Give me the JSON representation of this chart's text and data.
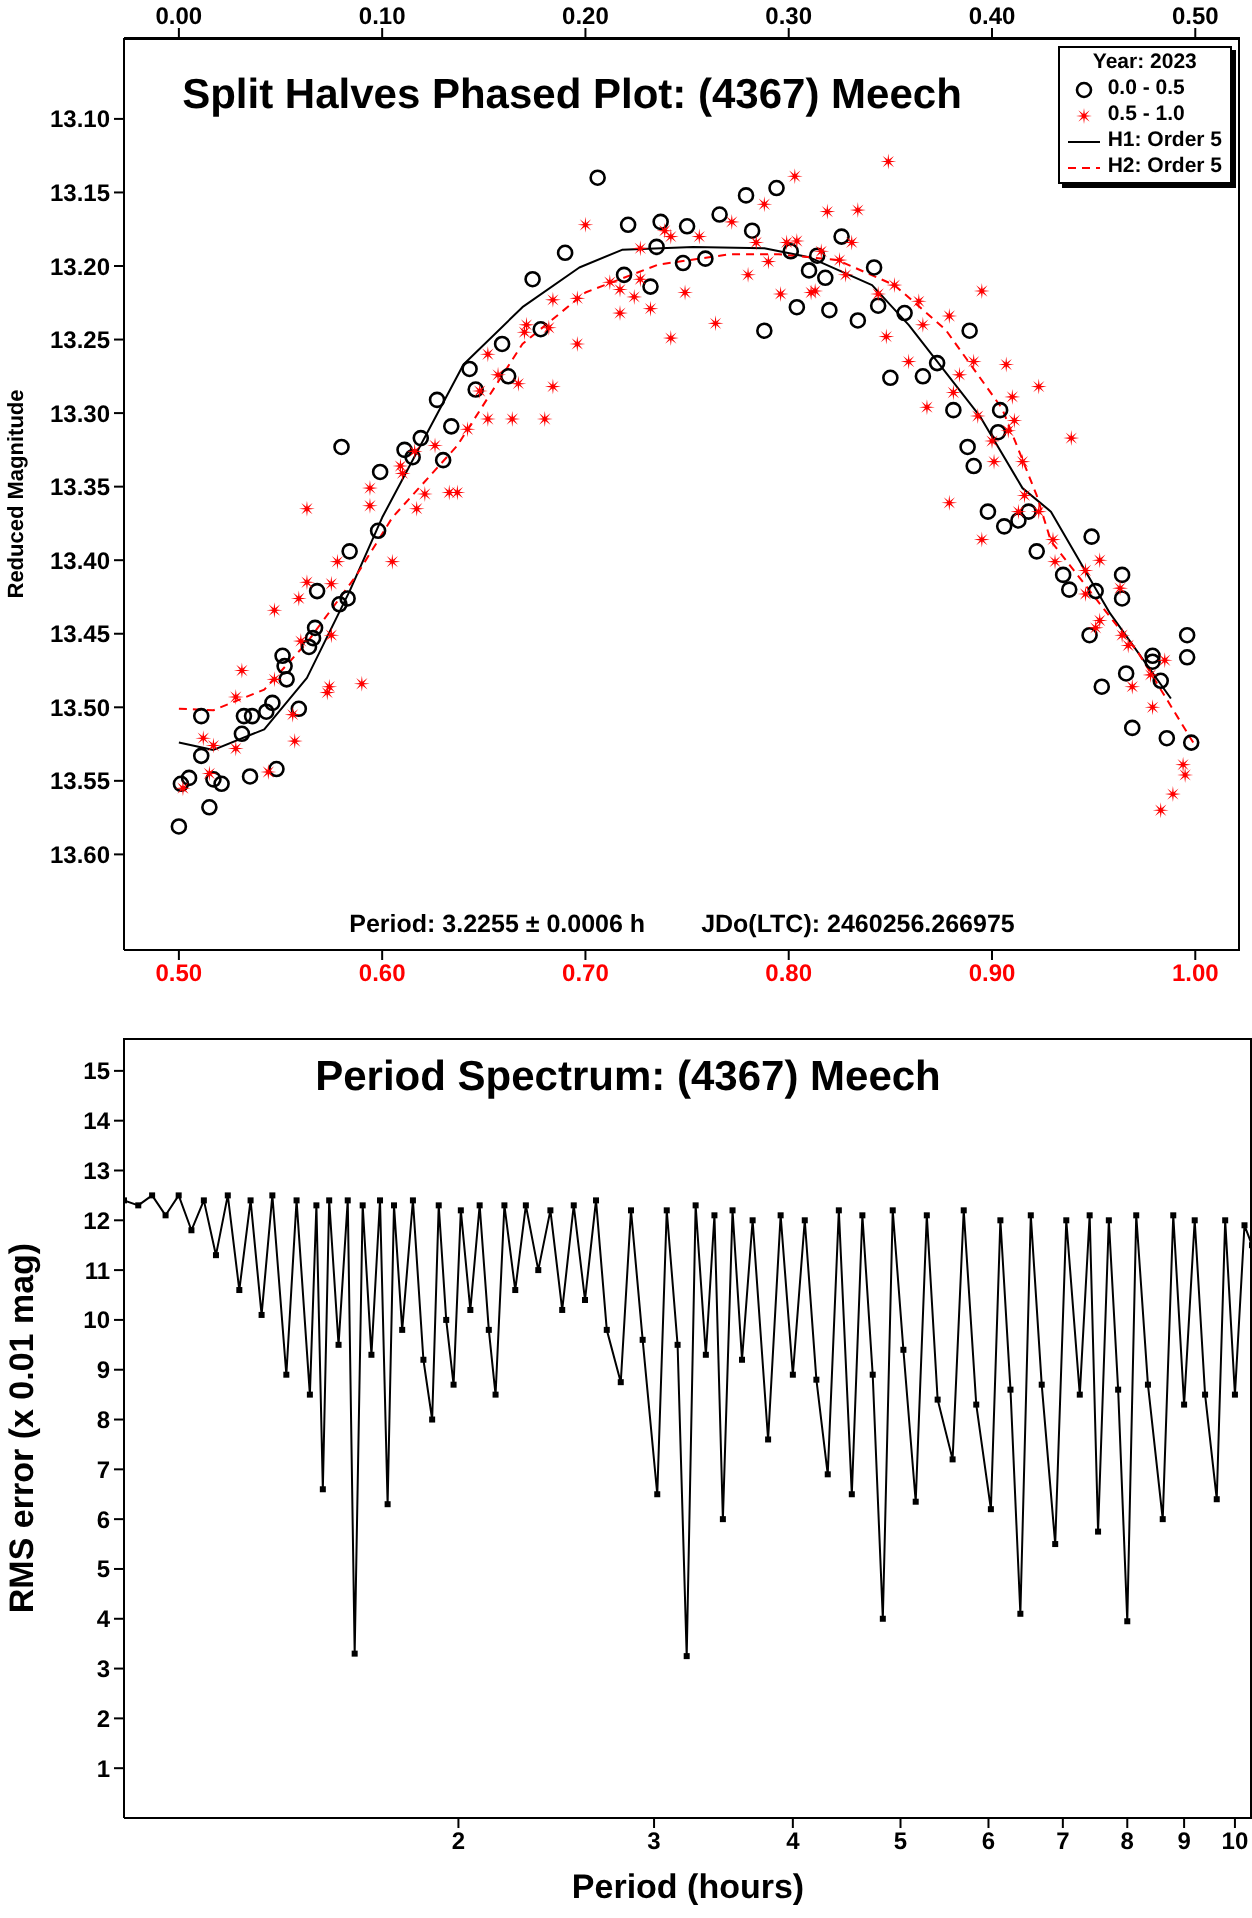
{
  "chart_data": [
    {
      "type": "scatter",
      "title": "Split Halves Phased Plot: (4367) Meech",
      "ylabel": "Reduced Magnitude",
      "legend_title": "Year: 2023",
      "legend": "top right",
      "grid": false,
      "annotations": [
        "Period: 3.2255 ± 0.0006 h",
        "JDo(LTC): 2460256.266975"
      ],
      "xlim": [
        0.473,
        1.022
      ],
      "xticks": [
        {
          "value": 0.5,
          "label": "0.50"
        },
        {
          "value": 0.6,
          "label": "0.60"
        },
        {
          "value": 0.7,
          "label": "0.70"
        },
        {
          "value": 0.8,
          "label": "0.80"
        },
        {
          "value": 0.9,
          "label": "0.90"
        },
        {
          "value": 1.0,
          "label": "1.00"
        }
      ],
      "x2lim": [
        -0.027,
        0.522
      ],
      "x2ticks": [
        {
          "value": 0,
          "label": "0.00"
        },
        {
          "value": 0.1,
          "label": "0.10"
        },
        {
          "value": 0.2,
          "label": "0.20"
        },
        {
          "value": 0.3,
          "label": "0.30"
        },
        {
          "value": 0.4,
          "label": "0.40"
        },
        {
          "value": 0.5,
          "label": "0.50"
        }
      ],
      "ylim": [
        13.665,
        13.045
      ],
      "yticks": [
        {
          "value": 13.1,
          "label": "13.10"
        },
        {
          "value": 13.15,
          "label": "13.15"
        },
        {
          "value": 13.2,
          "label": "13.20"
        },
        {
          "value": 13.25,
          "label": "13.25"
        },
        {
          "value": 13.3,
          "label": "13.30"
        },
        {
          "value": 13.35,
          "label": "13.35"
        },
        {
          "value": 13.4,
          "label": "13.40"
        },
        {
          "value": 13.45,
          "label": "13.45"
        },
        {
          "value": 13.5,
          "label": "13.50"
        },
        {
          "value": 13.55,
          "label": "13.55"
        },
        {
          "value": 13.6,
          "label": "13.60"
        }
      ],
      "series": [
        {
          "name": "0.0 - 0.5",
          "axis": "x2",
          "marker": "circle",
          "color": "#000000",
          "x": [
            0.0,
            0.001,
            0.005,
            0.011,
            0.011,
            0.015,
            0.017,
            0.021,
            0.031,
            0.032,
            0.035,
            0.036,
            0.043,
            0.046,
            0.048,
            0.051,
            0.052,
            0.053,
            0.059,
            0.064,
            0.066,
            0.067,
            0.068,
            0.079,
            0.08,
            0.083,
            0.084,
            0.098,
            0.099,
            0.111,
            0.115,
            0.119,
            0.127,
            0.13,
            0.134,
            0.143,
            0.146,
            0.159,
            0.162,
            0.174,
            0.178,
            0.19,
            0.206,
            0.219,
            0.221,
            0.232,
            0.235,
            0.237,
            0.248,
            0.25,
            0.259,
            0.266,
            0.279,
            0.282,
            0.288,
            0.294,
            0.301,
            0.304,
            0.31,
            0.314,
            0.318,
            0.32,
            0.326,
            0.334,
            0.342,
            0.344,
            0.35,
            0.357,
            0.366,
            0.373,
            0.381,
            0.388,
            0.389,
            0.391,
            0.398,
            0.403,
            0.404,
            0.406,
            0.413,
            0.418,
            0.422,
            0.435,
            0.438,
            0.448,
            0.449,
            0.451,
            0.454,
            0.464,
            0.464,
            0.466,
            0.469,
            0.479,
            0.479,
            0.483,
            0.486,
            0.496,
            0.496,
            0.498
          ],
          "values": [
            13.581,
            13.552,
            13.548,
            13.506,
            13.533,
            13.568,
            13.549,
            13.552,
            13.518,
            13.506,
            13.547,
            13.506,
            13.503,
            13.497,
            13.542,
            13.465,
            13.472,
            13.481,
            13.501,
            13.459,
            13.453,
            13.446,
            13.421,
            13.43,
            13.323,
            13.426,
            13.394,
            13.38,
            13.34,
            13.325,
            13.33,
            13.317,
            13.291,
            13.332,
            13.309,
            13.27,
            13.284,
            13.253,
            13.275,
            13.209,
            13.243,
            13.191,
            13.14,
            13.206,
            13.172,
            13.214,
            13.187,
            13.17,
            13.198,
            13.173,
            13.195,
            13.165,
            13.152,
            13.176,
            13.244,
            13.147,
            13.19,
            13.228,
            13.203,
            13.193,
            13.208,
            13.23,
            13.18,
            13.237,
            13.201,
            13.227,
            13.276,
            13.232,
            13.275,
            13.266,
            13.298,
            13.323,
            13.244,
            13.336,
            13.367,
            13.313,
            13.298,
            13.377,
            13.373,
            13.367,
            13.394,
            13.41,
            13.42,
            13.451,
            13.384,
            13.421,
            13.486,
            13.41,
            13.426,
            13.477,
            13.514,
            13.465,
            13.469,
            13.482,
            13.521,
            13.451,
            13.466,
            13.524
          ]
        },
        {
          "name": "0.5 - 1.0",
          "marker": "cross",
          "color": "#ff0000",
          "x": [
            0.502,
            0.512,
            0.515,
            0.517,
            0.528,
            0.528,
            0.531,
            0.544,
            0.547,
            0.547,
            0.556,
            0.557,
            0.559,
            0.56,
            0.563,
            0.563,
            0.573,
            0.574,
            0.575,
            0.575,
            0.578,
            0.59,
            0.594,
            0.594,
            0.605,
            0.609,
            0.61,
            0.616,
            0.617,
            0.621,
            0.626,
            0.633,
            0.637,
            0.642,
            0.648,
            0.652,
            0.652,
            0.657,
            0.664,
            0.667,
            0.67,
            0.671,
            0.68,
            0.682,
            0.684,
            0.684,
            0.696,
            0.696,
            0.7,
            0.712,
            0.717,
            0.717,
            0.724,
            0.727,
            0.727,
            0.732,
            0.739,
            0.742,
            0.742,
            0.749,
            0.756,
            0.764,
            0.772,
            0.78,
            0.784,
            0.788,
            0.79,
            0.796,
            0.799,
            0.803,
            0.804,
            0.811,
            0.813,
            0.816,
            0.819,
            0.825,
            0.828,
            0.831,
            0.834,
            0.844,
            0.848,
            0.849,
            0.852,
            0.859,
            0.864,
            0.866,
            0.868,
            0.879,
            0.879,
            0.881,
            0.884,
            0.891,
            0.893,
            0.895,
            0.895,
            0.9,
            0.901,
            0.907,
            0.908,
            0.91,
            0.911,
            0.913,
            0.915,
            0.916,
            0.923,
            0.923,
            0.93,
            0.931,
            0.939,
            0.946,
            0.946,
            0.951,
            0.953,
            0.953,
            0.963,
            0.964,
            0.967,
            0.969,
            0.978,
            0.979,
            0.983,
            0.985,
            0.989,
            0.994,
            0.995
          ],
          "values": [
            13.555,
            13.521,
            13.545,
            13.526,
            13.528,
            13.493,
            13.475,
            13.544,
            13.434,
            13.481,
            13.505,
            13.523,
            13.426,
            13.455,
            13.365,
            13.415,
            13.49,
            13.486,
            13.416,
            13.451,
            13.401,
            13.484,
            13.351,
            13.363,
            13.401,
            13.336,
            13.341,
            13.326,
            13.365,
            13.355,
            13.322,
            13.354,
            13.354,
            13.311,
            13.285,
            13.304,
            13.26,
            13.274,
            13.304,
            13.28,
            13.245,
            13.24,
            13.304,
            13.242,
            13.282,
            13.223,
            13.222,
            13.253,
            13.172,
            13.211,
            13.232,
            13.216,
            13.221,
            13.188,
            13.209,
            13.229,
            13.176,
            13.18,
            13.249,
            13.218,
            13.18,
            13.239,
            13.17,
            13.206,
            13.184,
            13.158,
            13.197,
            13.219,
            13.184,
            13.139,
            13.183,
            13.218,
            13.217,
            13.19,
            13.163,
            13.196,
            13.206,
            13.184,
            13.162,
            13.219,
            13.248,
            13.129,
            13.213,
            13.265,
            13.224,
            13.24,
            13.296,
            13.234,
            13.361,
            13.286,
            13.274,
            13.265,
            13.302,
            13.217,
            13.386,
            13.319,
            13.333,
            13.267,
            13.312,
            13.289,
            13.305,
            13.367,
            13.333,
            13.356,
            13.282,
            13.367,
            13.386,
            13.401,
            13.317,
            13.407,
            13.423,
            13.446,
            13.4,
            13.441,
            13.419,
            13.451,
            13.458,
            13.486,
            13.478,
            13.5,
            13.57,
            13.468,
            13.559,
            13.539,
            13.546
          ]
        },
        {
          "name": "H1: Order 5",
          "type": "line",
          "axis": "x2",
          "marker": "none",
          "line_style": "solid",
          "color": "#000000",
          "x": [
            0.0,
            0.017,
            0.042,
            0.063,
            0.084,
            0.1,
            0.14,
            0.169,
            0.197,
            0.218,
            0.253,
            0.288,
            0.31,
            0.341,
            0.359,
            0.394,
            0.415,
            0.429,
            0.458,
            0.488
          ],
          "values": [
            13.524,
            13.529,
            13.515,
            13.48,
            13.421,
            13.371,
            13.267,
            13.228,
            13.201,
            13.189,
            13.187,
            13.188,
            13.194,
            13.213,
            13.24,
            13.302,
            13.351,
            13.367,
            13.436,
            13.494
          ]
        },
        {
          "name": "H2: Order 5",
          "type": "line",
          "marker": "none",
          "line_style": "dashed",
          "color": "#ff0000",
          "x": [
            0.5,
            0.517,
            0.542,
            0.563,
            0.587,
            0.605,
            0.637,
            0.669,
            0.7,
            0.736,
            0.771,
            0.795,
            0.824,
            0.852,
            0.877,
            0.905,
            0.922,
            0.929,
            0.951,
            0.972,
            0.999
          ],
          "values": [
            13.501,
            13.502,
            13.488,
            13.456,
            13.411,
            13.371,
            13.322,
            13.253,
            13.218,
            13.199,
            13.192,
            13.192,
            13.196,
            13.213,
            13.243,
            13.297,
            13.356,
            13.387,
            13.426,
            13.463,
            13.524
          ]
        }
      ]
    },
    {
      "type": "line",
      "title": "Period Spectrum: (4367) Meech",
      "xlabel": "Period (hours)",
      "ylabel": "RMS error (x 0.01 mag)",
      "log": "x",
      "grid": false,
      "legend": false,
      "marker": "square",
      "xlim": [
        1.0,
        10.36
      ],
      "xticks": [
        2,
        3,
        4,
        5,
        6,
        7,
        8,
        9,
        10
      ],
      "ylim": [
        0,
        15.66
      ],
      "yticks": [
        1,
        2,
        3,
        4,
        5,
        6,
        7,
        8,
        9,
        10,
        11,
        12,
        13,
        14,
        15
      ],
      "series": [
        {
          "color": "#000000",
          "x": [
            1.0,
            1.03,
            1.06,
            1.09,
            1.12,
            1.15,
            1.18,
            1.21,
            1.24,
            1.27,
            1.3,
            1.33,
            1.36,
            1.4,
            1.43,
            1.47,
            1.49,
            1.51,
            1.53,
            1.56,
            1.59,
            1.613,
            1.64,
            1.67,
            1.7,
            1.727,
            1.75,
            1.78,
            1.82,
            1.86,
            1.894,
            1.92,
            1.95,
            1.98,
            2.01,
            2.05,
            2.09,
            2.13,
            2.16,
            2.2,
            2.25,
            2.3,
            2.36,
            2.42,
            2.48,
            2.54,
            2.6,
            2.66,
            2.72,
            2.8,
            2.86,
            2.93,
            3.02,
            3.08,
            3.15,
            3.21,
            3.27,
            3.34,
            3.4,
            3.46,
            3.53,
            3.6,
            3.68,
            3.8,
            3.9,
            4.0,
            4.1,
            4.2,
            4.3,
            4.4,
            4.52,
            4.62,
            4.72,
            4.82,
            4.92,
            5.03,
            5.16,
            5.28,
            5.4,
            5.57,
            5.7,
            5.85,
            6.03,
            6.15,
            6.28,
            6.41,
            6.55,
            6.7,
            6.89,
            7.05,
            7.25,
            7.4,
            7.53,
            7.7,
            7.85,
            8.0,
            8.15,
            8.35,
            8.61,
            8.8,
            9.0,
            9.2,
            9.4,
            9.63,
            9.8,
            10.0,
            10.2,
            10.36
          ],
          "values": [
            12.4,
            12.3,
            12.5,
            12.1,
            12.5,
            11.8,
            12.4,
            11.3,
            12.5,
            10.6,
            12.4,
            10.1,
            12.5,
            8.9,
            12.4,
            8.5,
            12.3,
            6.6,
            12.4,
            9.5,
            12.4,
            3.3,
            12.3,
            9.3,
            12.4,
            6.3,
            12.3,
            9.8,
            12.4,
            9.2,
            8.0,
            12.3,
            10.0,
            8.7,
            12.2,
            10.2,
            12.3,
            9.8,
            8.5,
            12.3,
            10.6,
            12.3,
            11.0,
            12.2,
            10.2,
            12.3,
            10.4,
            12.4,
            9.8,
            8.75,
            12.2,
            9.6,
            6.5,
            12.2,
            9.5,
            3.25,
            12.3,
            9.3,
            12.1,
            6.0,
            12.2,
            9.2,
            12.0,
            7.6,
            12.1,
            8.9,
            12.0,
            8.8,
            6.9,
            12.2,
            6.5,
            12.1,
            8.9,
            4.0,
            12.2,
            9.4,
            6.35,
            12.1,
            8.4,
            7.2,
            12.2,
            8.3,
            6.2,
            12.0,
            8.6,
            4.1,
            12.1,
            8.7,
            5.5,
            12.0,
            8.5,
            12.1,
            5.75,
            12.0,
            8.6,
            3.95,
            12.1,
            8.7,
            6.0,
            12.1,
            8.3,
            12.0,
            8.5,
            6.4,
            12.0,
            8.5,
            11.9,
            11.5
          ]
        }
      ]
    }
  ]
}
